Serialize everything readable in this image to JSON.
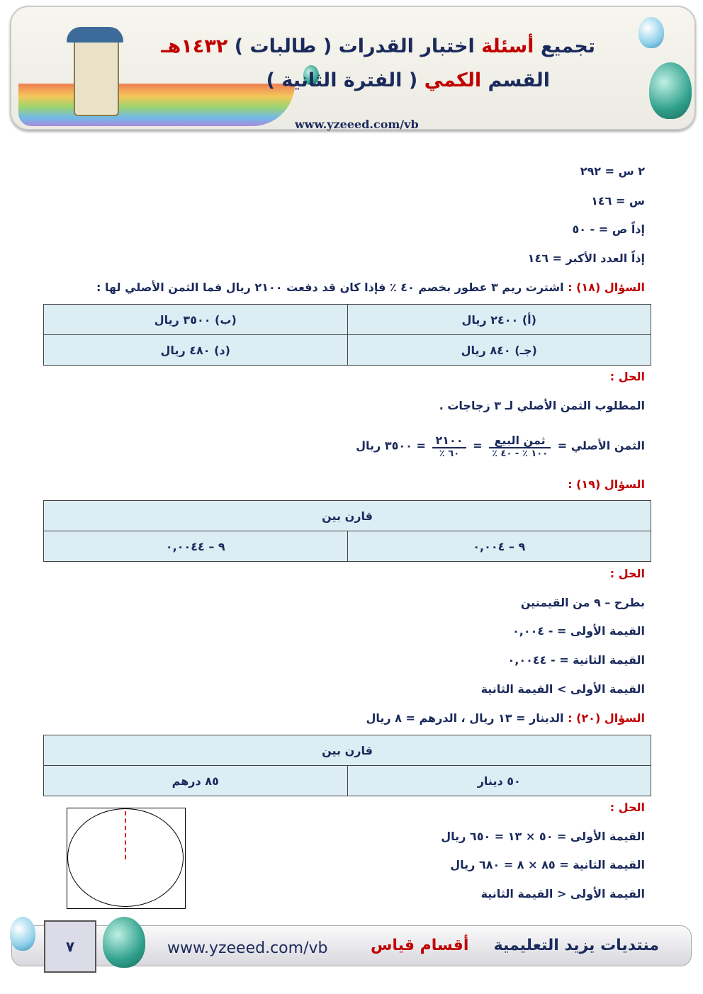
{
  "header": {
    "title_part1": "تجميع",
    "title_red": "أسئلة",
    "title_part2": "اختبار القدرات ( طالبات )",
    "title_year": "١٤٣٢هـ",
    "subtitle_part1": "القسم",
    "subtitle_red": "الكمي",
    "subtitle_part2": "( الفترة الثانية )",
    "url": "www.yzeeed.com/vb"
  },
  "lines_top": [
    "٢ س = ٢٩٢",
    "س = ١٤٦",
    "إذاً ص = - ٥٠",
    "إذاً العدد الأكبر = ١٤٦"
  ],
  "q18": {
    "label": "السؤال (١٨) :",
    "text": "اشترت ريم ٣ عطور بخصم ٤٠ ٪ فإذا كان قد دفعت ٢١٠٠ ريال فما الثمن الأصلي لها :",
    "options": [
      [
        "(أ) ٢٤٠٠ ريال",
        "(ب) ٣٥٠٠ ريال"
      ],
      [
        "(جـ) ٨٤٠ ريال",
        "(د) ٤٨٠ ريال"
      ]
    ],
    "solution_label": "الحل :",
    "solution_line1": "المطلوب الثمن الأصلي لـ ٣ زجاجات .",
    "eq_lhs": "الثمن الأصلي =",
    "frac1_num": "ثمن البيع",
    "frac1_den": "١٠٠ ٪ - ٤٠ ٪",
    "frac2_num": "٢١٠٠",
    "frac2_den": "٦٠ ٪",
    "eq_rhs": "= ٣٥٠٠ ريال",
    "eq_sep": "="
  },
  "q19": {
    "label": "السؤال (١٩) :",
    "compare": "قارن بين",
    "cells": [
      "٩ – ٠,٠٠٤",
      "٩ – ٠,٠٠٤٤"
    ],
    "solution_label": "الحل :",
    "solution": [
      "بطرح – ٩ من القيمتين",
      "القيمة الأولى = - ٠,٠٠٤",
      "القيمة الثانية = - ٠,٠٠٤٤",
      "القيمة الأولى > القيمة الثانية"
    ]
  },
  "q20": {
    "label": "السؤال (٢٠) :",
    "text": "الدينار = ١٣ ريال ، الدرهم = ٨ ريال",
    "compare": "قارن بين",
    "cells": [
      "٥٠ دينار",
      "٨٥ درهم"
    ],
    "solution_label": "الحل :",
    "solution": [
      "القيمة الأولى = ٥٠ × ١٣ = ٦٥٠ ريال",
      "القيمة الثانية = ٨٥ × ٨ = ٦٨٠ ريال",
      "القيمة الأولى < القيمة الثانية"
    ]
  },
  "footer": {
    "page_number": "٧",
    "url": "www.yzeeed.com/vb",
    "middle": "أقسام قياس",
    "right": "منتديات يزيد التعليمية"
  },
  "colors": {
    "text": "#1b2a5c",
    "accent_red": "#c00000",
    "cell_bg": "#dcedf4"
  }
}
